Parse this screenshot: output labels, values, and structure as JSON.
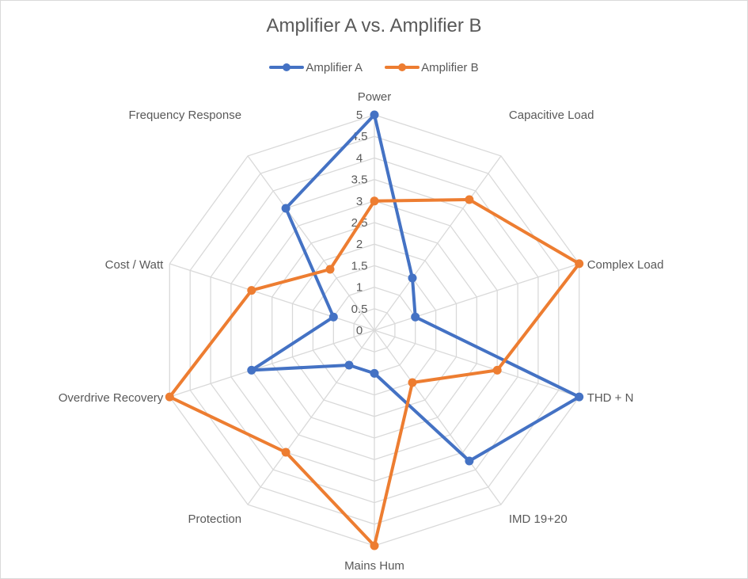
{
  "chart_data": {
    "type": "radar",
    "title": "Amplifier A vs. Amplifier B",
    "categories": [
      "Power",
      "Capacitive Load",
      "Complex Load",
      "THD + N",
      "IMD 19+20",
      "Mains Hum",
      "Protection",
      "Overdrive Recovery",
      "Cost / Watt",
      "Frequency Response"
    ],
    "series": [
      {
        "name": "Amplifier A",
        "color": "#4472C4",
        "values": [
          5,
          1.5,
          1,
          5,
          3.75,
          1,
          1,
          3,
          1,
          3.5
        ]
      },
      {
        "name": "Amplifier B",
        "color": "#ED7D31",
        "values": [
          3,
          3.75,
          5,
          3,
          1.5,
          5,
          3.5,
          5,
          3,
          1.75
        ]
      }
    ],
    "rlim": [
      0,
      5
    ],
    "ticks": [
      "0",
      "0.5",
      "1",
      "1.5",
      "2",
      "2.5",
      "3",
      "3.5",
      "4",
      "4.5",
      "5"
    ],
    "grid": true,
    "legend_position": "top"
  }
}
